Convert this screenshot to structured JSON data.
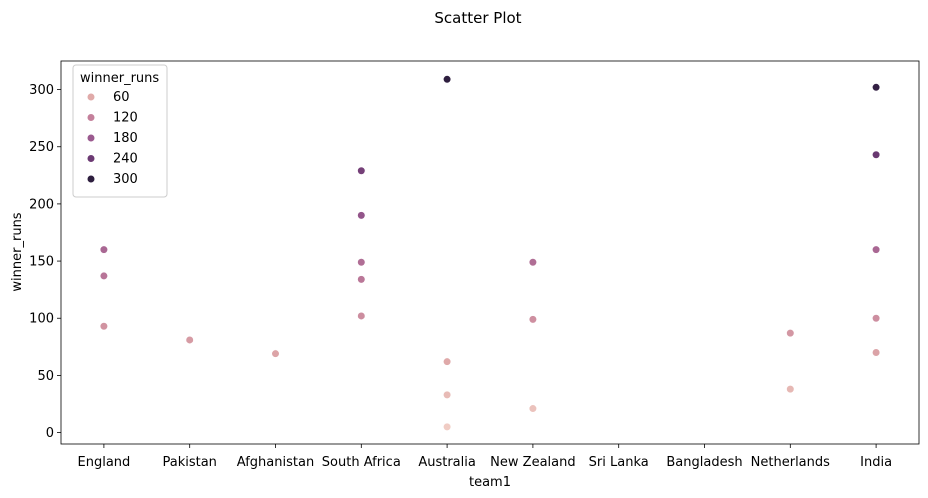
{
  "chart_data": {
    "type": "scatter",
    "title": "Scatter Plot",
    "xlabel": "team1",
    "ylabel": "winner_runs",
    "categories": [
      "England",
      "Pakistan",
      "Afghanistan",
      "South Africa",
      "Australia",
      "New Zealand",
      "Sri Lanka",
      "Bangladesh",
      "Netherlands",
      "India"
    ],
    "ylim": [
      -10,
      325
    ],
    "yticks": [
      0,
      50,
      100,
      150,
      200,
      250,
      300
    ],
    "grid": false,
    "points": [
      {
        "x": "England",
        "y": 160
      },
      {
        "x": "England",
        "y": 137
      },
      {
        "x": "England",
        "y": 93
      },
      {
        "x": "Pakistan",
        "y": 81
      },
      {
        "x": "Afghanistan",
        "y": 69
      },
      {
        "x": "South Africa",
        "y": 229
      },
      {
        "x": "South Africa",
        "y": 190
      },
      {
        "x": "South Africa",
        "y": 149
      },
      {
        "x": "South Africa",
        "y": 134
      },
      {
        "x": "South Africa",
        "y": 102
      },
      {
        "x": "Australia",
        "y": 309
      },
      {
        "x": "Australia",
        "y": 62
      },
      {
        "x": "Australia",
        "y": 33
      },
      {
        "x": "Australia",
        "y": 5
      },
      {
        "x": "New Zealand",
        "y": 149
      },
      {
        "x": "New Zealand",
        "y": 99
      },
      {
        "x": "New Zealand",
        "y": 21
      },
      {
        "x": "Netherlands",
        "y": 87
      },
      {
        "x": "Netherlands",
        "y": 38
      },
      {
        "x": "India",
        "y": 302
      },
      {
        "x": "India",
        "y": 243
      },
      {
        "x": "India",
        "y": 160
      },
      {
        "x": "India",
        "y": 100
      },
      {
        "x": "India",
        "y": 70
      }
    ],
    "legend": {
      "title": "winner_runs",
      "position": "upper-left",
      "entries": [
        {
          "label": "60",
          "value": 60,
          "color": "#e0aaa9"
        },
        {
          "label": "120",
          "value": 120,
          "color": "#c4809b"
        },
        {
          "label": "180",
          "value": 180,
          "color": "#9b5a8f"
        },
        {
          "label": "240",
          "value": 240,
          "color": "#6c3a73"
        },
        {
          "label": "300",
          "value": 300,
          "color": "#2d1e3e"
        }
      ]
    },
    "color_scale": {
      "stops": [
        {
          "value": 0,
          "color": "#f1cfc6"
        },
        {
          "value": 60,
          "color": "#e0aaa9"
        },
        {
          "value": 120,
          "color": "#c4809b"
        },
        {
          "value": 180,
          "color": "#9b5a8f"
        },
        {
          "value": 240,
          "color": "#6c3a73"
        },
        {
          "value": 310,
          "color": "#2d1e3e"
        }
      ]
    }
  }
}
